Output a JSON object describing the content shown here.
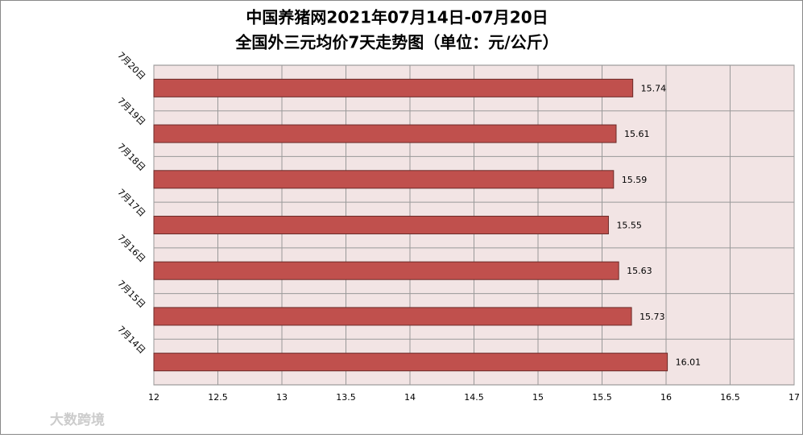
{
  "chart_data": {
    "type": "barh",
    "title": "中国养猪网2021年07月14日-07月20日",
    "subtitle": "全国外三元均价7天走势图（单位：元/公斤）",
    "categories": [
      "7月20日",
      "7月19日",
      "7月18日",
      "7月17日",
      "7月16日",
      "7月15日",
      "7月14日"
    ],
    "values": [
      15.74,
      15.61,
      15.59,
      15.55,
      15.63,
      15.73,
      16.01
    ],
    "color": "#c0504d",
    "xlim": [
      12,
      17
    ],
    "xticks": [
      12,
      12.5,
      13,
      13.5,
      14,
      14.5,
      15,
      15.5,
      16,
      16.5,
      17
    ],
    "grid": true,
    "watermark": "大数跨境"
  }
}
